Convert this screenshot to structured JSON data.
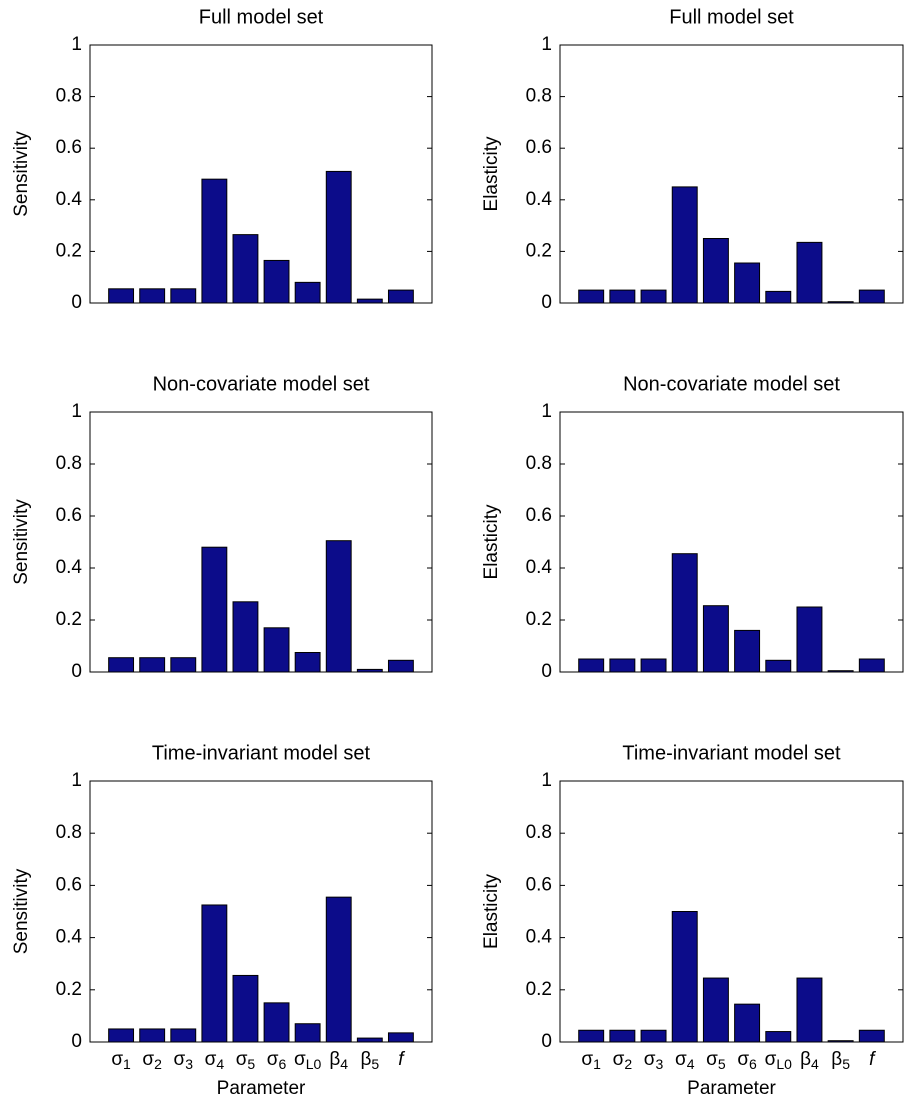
{
  "chart_data": [
    {
      "type": "bar",
      "title": "Full model set",
      "ylabel": "Sensitivity",
      "categories": [
        null,
        null,
        null,
        null,
        null,
        null,
        null,
        null,
        null,
        null
      ],
      "values": [
        0.055,
        0.055,
        0.055,
        0.48,
        0.265,
        0.165,
        0.08,
        0.51,
        0.015,
        0.05
      ],
      "ylim": [
        0,
        1
      ],
      "yticks": [
        0,
        0.2,
        0.4,
        0.6,
        0.8,
        1
      ],
      "color": "#0c0c8a"
    },
    {
      "type": "bar",
      "title": "Full model set",
      "ylabel": "Elasticity",
      "categories": [
        null,
        null,
        null,
        null,
        null,
        null,
        null,
        null,
        null,
        null
      ],
      "values": [
        0.05,
        0.05,
        0.05,
        0.45,
        0.25,
        0.155,
        0.045,
        0.235,
        0.005,
        0.05
      ],
      "ylim": [
        0,
        1
      ],
      "yticks": [
        0,
        0.2,
        0.4,
        0.6,
        0.8,
        1
      ],
      "color": "#0c0c8a"
    },
    {
      "type": "bar",
      "title": "Non-covariate model set",
      "ylabel": "Sensitivity",
      "categories": [
        null,
        null,
        null,
        null,
        null,
        null,
        null,
        null,
        null,
        null
      ],
      "values": [
        0.055,
        0.055,
        0.055,
        0.48,
        0.27,
        0.17,
        0.075,
        0.505,
        0.01,
        0.045
      ],
      "ylim": [
        0,
        1
      ],
      "yticks": [
        0,
        0.2,
        0.4,
        0.6,
        0.8,
        1
      ],
      "color": "#0c0c8a"
    },
    {
      "type": "bar",
      "title": "Non-covariate model set",
      "ylabel": "Elasticity",
      "categories": [
        null,
        null,
        null,
        null,
        null,
        null,
        null,
        null,
        null,
        null
      ],
      "values": [
        0.05,
        0.05,
        0.05,
        0.455,
        0.255,
        0.16,
        0.045,
        0.25,
        0.005,
        0.05
      ],
      "ylim": [
        0,
        1
      ],
      "yticks": [
        0,
        0.2,
        0.4,
        0.6,
        0.8,
        1
      ],
      "color": "#0c0c8a"
    },
    {
      "type": "bar",
      "title": "Time-invariant model set",
      "ylabel": "Sensitivity",
      "xlabel": "Parameter",
      "categories": [
        "σ1",
        "σ2",
        "σ3",
        "σ4",
        "σ5",
        "σ6",
        "σL0",
        "β4",
        "β5",
        "f"
      ],
      "values": [
        0.05,
        0.05,
        0.05,
        0.525,
        0.255,
        0.15,
        0.07,
        0.555,
        0.015,
        0.035
      ],
      "ylim": [
        0,
        1
      ],
      "yticks": [
        0,
        0.2,
        0.4,
        0.6,
        0.8,
        1
      ],
      "color": "#0c0c8a"
    },
    {
      "type": "bar",
      "title": "Time-invariant model set",
      "ylabel": "Elasticity",
      "xlabel": "Parameter",
      "categories": [
        "σ1",
        "σ2",
        "σ3",
        "σ4",
        "σ5",
        "σ6",
        "σL0",
        "β4",
        "β5",
        "f"
      ],
      "values": [
        0.045,
        0.045,
        0.045,
        0.5,
        0.245,
        0.145,
        0.04,
        0.245,
        0.005,
        0.045
      ],
      "ylim": [
        0,
        1
      ],
      "yticks": [
        0,
        0.2,
        0.4,
        0.6,
        0.8,
        1
      ],
      "color": "#0c0c8a"
    }
  ]
}
